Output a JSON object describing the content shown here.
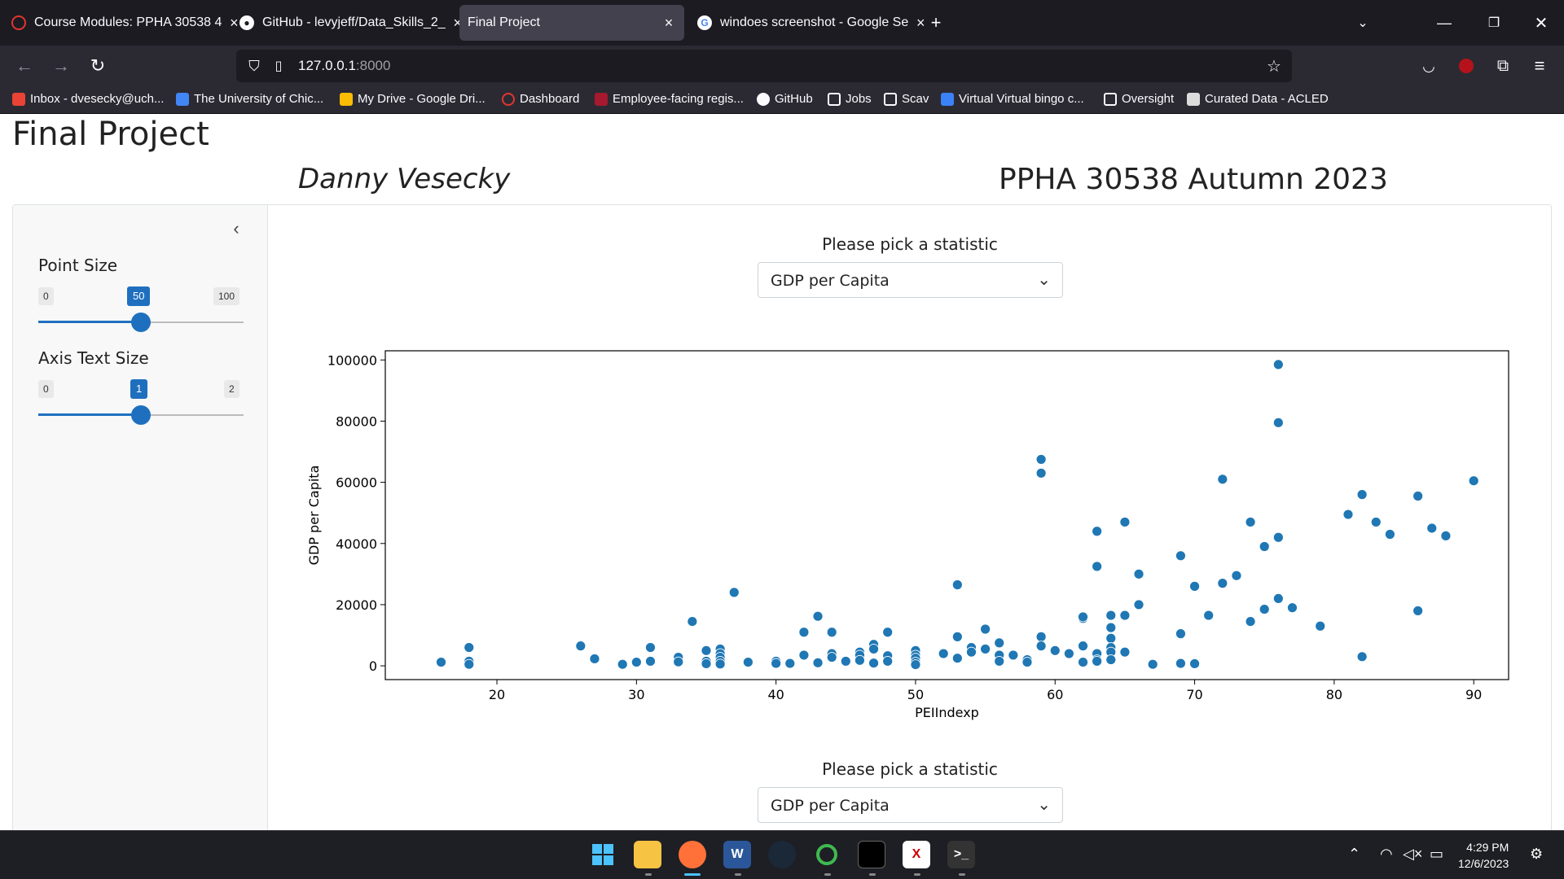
{
  "browser": {
    "tabs": [
      {
        "title": "Course Modules: PPHA 30538 4",
        "active": false,
        "icon": "canvas-icon"
      },
      {
        "title": "GitHub - levyjeff/Data_Skills_2_",
        "active": false,
        "icon": "github-icon"
      },
      {
        "title": "Final Project",
        "active": true,
        "icon": ""
      },
      {
        "title": "windoes screenshot - Google Se",
        "active": false,
        "icon": "google-icon"
      }
    ],
    "url_host": "127.0.0.1",
    "url_port": ":8000",
    "bookmarks": [
      {
        "label": "Inbox - dvesecky@uch...",
        "icon": "gmail-icon"
      },
      {
        "label": "The University of Chic...",
        "icon": "calendar-icon"
      },
      {
        "label": "My Drive - Google Dri...",
        "icon": "drive-icon"
      },
      {
        "label": "Dashboard",
        "icon": "canvas-icon"
      },
      {
        "label": "Employee-facing regis...",
        "icon": "shield-icon"
      },
      {
        "label": "GitHub",
        "icon": "github-icon"
      },
      {
        "label": "Jobs",
        "icon": "folder-icon"
      },
      {
        "label": "Scav",
        "icon": "folder-icon"
      },
      {
        "label": "Virtual Virtual bingo c...",
        "icon": "bingo-icon"
      },
      {
        "label": "Oversight",
        "icon": "folder-icon"
      },
      {
        "label": "Curated Data - ACLED",
        "icon": "acled-icon"
      }
    ]
  },
  "page": {
    "title": "Final Project",
    "author": "Danny Vesecky",
    "course": "PPHA 30538 Autumn 2023"
  },
  "sidebar": {
    "point_size": {
      "label": "Point Size",
      "min": "0",
      "max": "100",
      "value": "50",
      "fraction": 0.5
    },
    "axis_text_size": {
      "label": "Axis Text Size",
      "min": "0",
      "max": "2",
      "value": "1",
      "fraction": 0.5
    }
  },
  "main": {
    "select_label_1": "Please pick a statistic",
    "select_value_1": "GDP per Capita",
    "select_label_2": "Please pick a statistic",
    "select_value_2": "GDP per Capita"
  },
  "chart_data": {
    "type": "scatter",
    "title": "",
    "xlabel": "PEIIndexp",
    "ylabel": "GDP per Capita",
    "xlim": [
      12,
      92.5
    ],
    "ylim": [
      -4500,
      103000
    ],
    "xticks": [
      20,
      30,
      40,
      50,
      60,
      70,
      80,
      90
    ],
    "yticks": [
      0,
      20000,
      40000,
      60000,
      80000,
      100000
    ],
    "color": "#1f77b4",
    "grid": false,
    "points": [
      [
        16,
        1200
      ],
      [
        18,
        6000
      ],
      [
        18,
        1500
      ],
      [
        18,
        500
      ],
      [
        26,
        6500
      ],
      [
        27,
        2300
      ],
      [
        29,
        500
      ],
      [
        30,
        1200
      ],
      [
        31,
        6000
      ],
      [
        31,
        1500
      ],
      [
        33,
        2800
      ],
      [
        33,
        1300
      ],
      [
        34,
        14500
      ],
      [
        35,
        5000
      ],
      [
        35,
        1500
      ],
      [
        35,
        700
      ],
      [
        36,
        5500
      ],
      [
        36,
        4000
      ],
      [
        36,
        2800
      ],
      [
        36,
        1500
      ],
      [
        36,
        600
      ],
      [
        37,
        24000
      ],
      [
        38,
        1200
      ],
      [
        40,
        1500
      ],
      [
        40,
        800
      ],
      [
        41,
        800
      ],
      [
        42,
        11000
      ],
      [
        42,
        3500
      ],
      [
        43,
        16200
      ],
      [
        43,
        1000
      ],
      [
        44,
        11000
      ],
      [
        44,
        4000
      ],
      [
        44,
        2800
      ],
      [
        45,
        1500
      ],
      [
        46,
        4500
      ],
      [
        46,
        3500
      ],
      [
        46,
        1800
      ],
      [
        47,
        7000
      ],
      [
        47,
        5500
      ],
      [
        47,
        900
      ],
      [
        48,
        11000
      ],
      [
        48,
        3300
      ],
      [
        48,
        1500
      ],
      [
        50,
        5000
      ],
      [
        50,
        3500
      ],
      [
        50,
        2500
      ],
      [
        50,
        1200
      ],
      [
        50,
        400
      ],
      [
        52,
        4000
      ],
      [
        53,
        26500
      ],
      [
        53,
        9500
      ],
      [
        53,
        2500
      ],
      [
        54,
        6000
      ],
      [
        54,
        4500
      ],
      [
        55,
        12000
      ],
      [
        55,
        5500
      ],
      [
        56,
        7500
      ],
      [
        56,
        3500
      ],
      [
        56,
        1500
      ],
      [
        57,
        3500
      ],
      [
        58,
        2000
      ],
      [
        58,
        1200
      ],
      [
        59,
        67500
      ],
      [
        59,
        63000
      ],
      [
        59,
        9500
      ],
      [
        59,
        6500
      ],
      [
        60,
        5000
      ],
      [
        61,
        4000
      ],
      [
        62,
        15500
      ],
      [
        62,
        16000
      ],
      [
        62,
        6500
      ],
      [
        62,
        1200
      ],
      [
        63,
        44000
      ],
      [
        63,
        32500
      ],
      [
        63,
        4000
      ],
      [
        63,
        2000
      ],
      [
        63,
        1500
      ],
      [
        64,
        16500
      ],
      [
        64,
        12500
      ],
      [
        64,
        9000
      ],
      [
        64,
        6000
      ],
      [
        64,
        4500
      ],
      [
        64,
        2000
      ],
      [
        65,
        47000
      ],
      [
        65,
        16500
      ],
      [
        65,
        4500
      ],
      [
        66,
        30000
      ],
      [
        66,
        20000
      ],
      [
        67,
        500
      ],
      [
        69,
        36000
      ],
      [
        69,
        10500
      ],
      [
        69,
        800
      ],
      [
        70,
        26000
      ],
      [
        70,
        700
      ],
      [
        71,
        16500
      ],
      [
        72,
        61000
      ],
      [
        72,
        27000
      ],
      [
        73,
        29500
      ],
      [
        74,
        47000
      ],
      [
        74,
        14500
      ],
      [
        75,
        39000
      ],
      [
        75,
        18500
      ],
      [
        76,
        98500
      ],
      [
        76,
        79500
      ],
      [
        76,
        42000
      ],
      [
        76,
        22000
      ],
      [
        77,
        19000
      ],
      [
        79,
        13000
      ],
      [
        81,
        49500
      ],
      [
        82,
        56000
      ],
      [
        82,
        3000
      ],
      [
        83,
        47000
      ],
      [
        84,
        43000
      ],
      [
        86,
        55500
      ],
      [
        86,
        18000
      ],
      [
        87,
        45000
      ],
      [
        88,
        42500
      ],
      [
        90,
        60500
      ]
    ]
  },
  "taskbar": {
    "apps": [
      "start-icon",
      "file-explorer-icon",
      "firefox-icon",
      "word-icon",
      "steam-icon",
      "app-ring-icon",
      "terminal-icon",
      "vs-icon",
      "powershell-icon"
    ],
    "time": "4:29 PM",
    "date": "12/6/2023"
  }
}
